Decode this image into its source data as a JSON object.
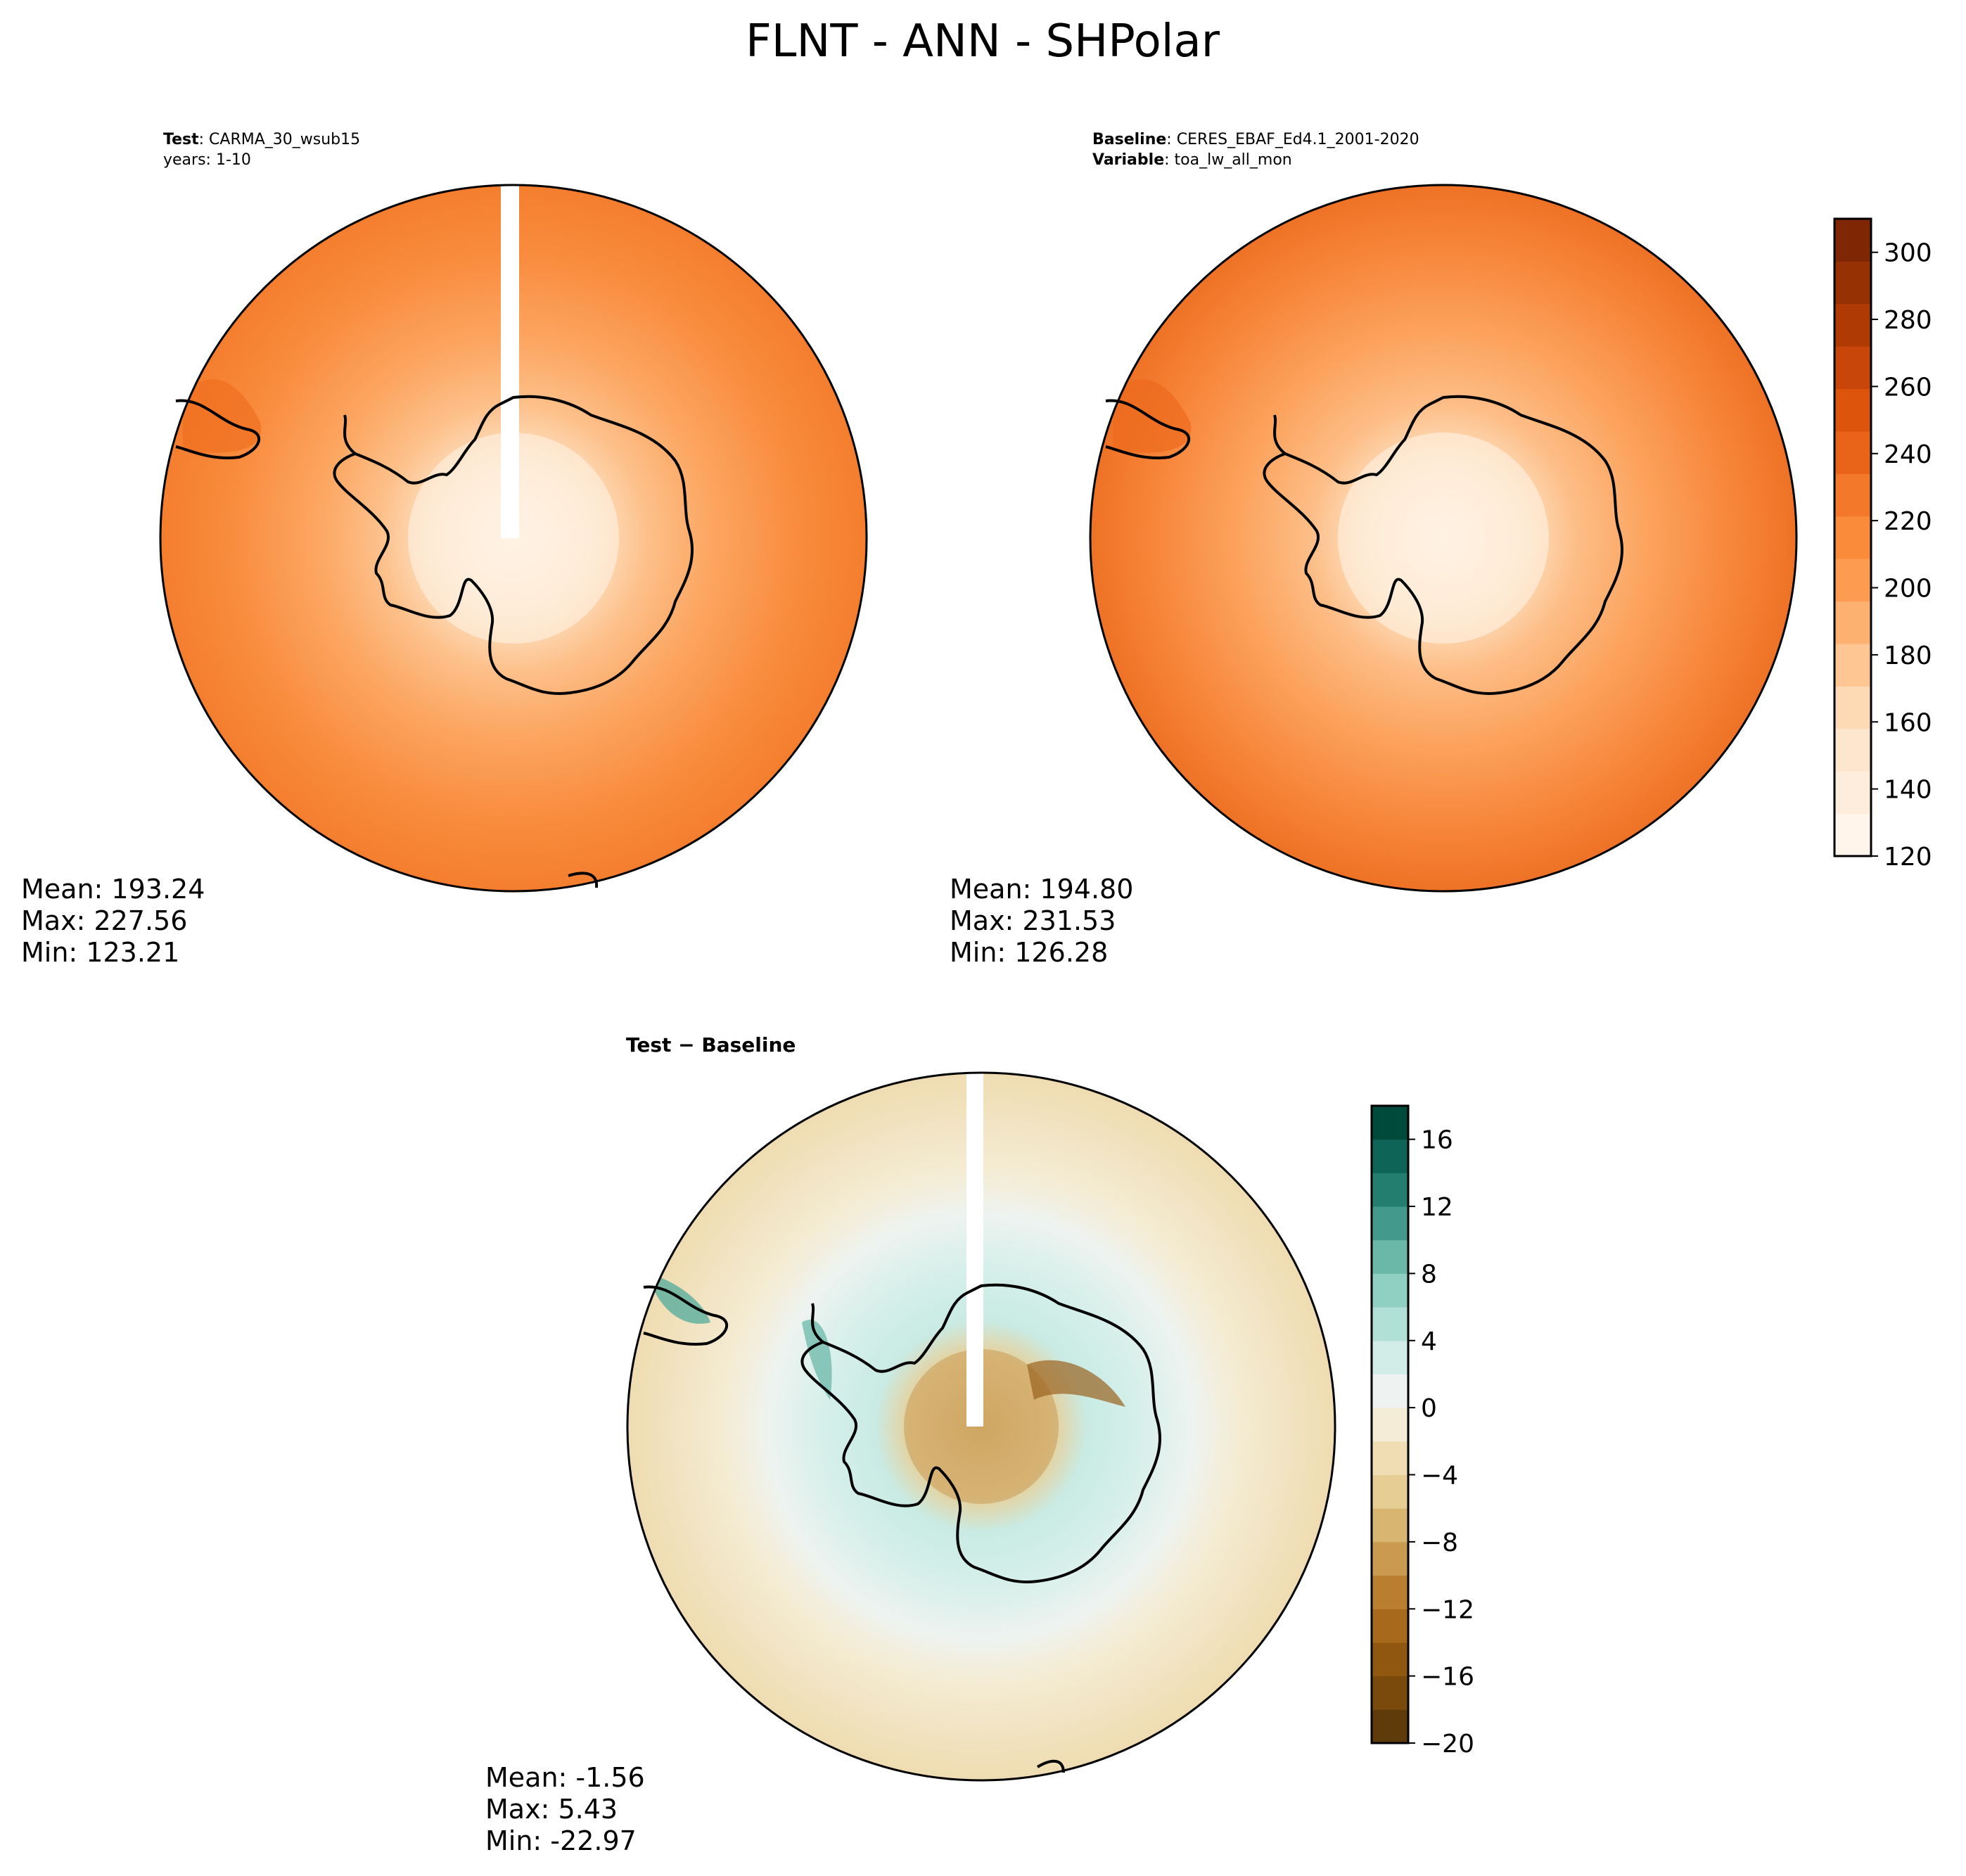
{
  "figure": {
    "title": "FLNT - ANN - SHPolar"
  },
  "chart_data": [
    {
      "type": "heatmap",
      "projection": "south-polar-stereographic",
      "panel": "test",
      "label_key_1": "Test",
      "label_val_1": "CARMA_30_wsub15",
      "label_line_2": "years: 1-10",
      "stats": {
        "mean": "Mean: 193.24",
        "max": "Max: 227.56",
        "min": "Min: 123.21"
      },
      "field": {
        "description_levels": "concentric bands; ~130 at pole interior rising to ~225 at outer edge",
        "center_value": 125,
        "coast_value": 165,
        "mid_ocean_value": 200,
        "edge_value": 215
      }
    },
    {
      "type": "heatmap",
      "projection": "south-polar-stereographic",
      "panel": "baseline",
      "label_key_1": "Baseline",
      "label_val_1": "CERES_EBAF_Ed4.1_2001-2020",
      "label_key_2": "Variable",
      "label_val_2": "toa_lw_all_mon",
      "stats": {
        "mean": "Mean: 194.80",
        "max": "Max: 231.53",
        "min": "Min: 126.28"
      },
      "field": {
        "center_value": 128,
        "coast_value": 165,
        "mid_ocean_value": 200,
        "edge_value": 222
      }
    },
    {
      "type": "heatmap",
      "projection": "south-polar-stereographic",
      "panel": "difference",
      "title": "Test − Baseline",
      "stats": {
        "mean": "Mean: -1.56",
        "max": "Max:  5.43",
        "min": "Min: -22.97"
      },
      "field": {
        "center_value": -6,
        "coast_ring_value": 3,
        "mid_ocean_value": 1,
        "edge_value": -3
      }
    }
  ],
  "colorbars": {
    "main": {
      "colormap": "Oranges",
      "range": [
        120,
        310
      ],
      "ticks": [
        "120",
        "140",
        "160",
        "180",
        "200",
        "220",
        "240",
        "260",
        "280",
        "300"
      ],
      "tick_values": [
        120,
        140,
        160,
        180,
        200,
        220,
        240,
        260,
        280,
        300
      ],
      "colors": [
        "#fff5eb",
        "#feeddc",
        "#fee6ce",
        "#fdd9b4",
        "#fdc692",
        "#fdb171",
        "#fd9c51",
        "#f98b3b",
        "#f3782a",
        "#e96419",
        "#dd540d",
        "#c9460a",
        "#b03a04",
        "#963103",
        "#7f2704"
      ]
    },
    "diff": {
      "colormap": "BrBG",
      "range": [
        -20,
        18
      ],
      "ticks": [
        "−20",
        "−16",
        "−12",
        "−8",
        "−4",
        "0",
        "4",
        "8",
        "12",
        "16"
      ],
      "tick_values": [
        -20,
        -16,
        -12,
        -8,
        -4,
        0,
        4,
        8,
        12,
        16
      ],
      "colors": [
        "#5f3a0a",
        "#7a4a0c",
        "#8f570f",
        "#a76a1d",
        "#ba7e30",
        "#c99a4f",
        "#d8b571",
        "#e6cd94",
        "#f0ddb3",
        "#f4ecd6",
        "#eef3f1",
        "#d2ede8",
        "#b1e0d7",
        "#8fd0c3",
        "#6bb8a9",
        "#43998c",
        "#247e70",
        "#0e6457",
        "#004a3c"
      ]
    }
  }
}
